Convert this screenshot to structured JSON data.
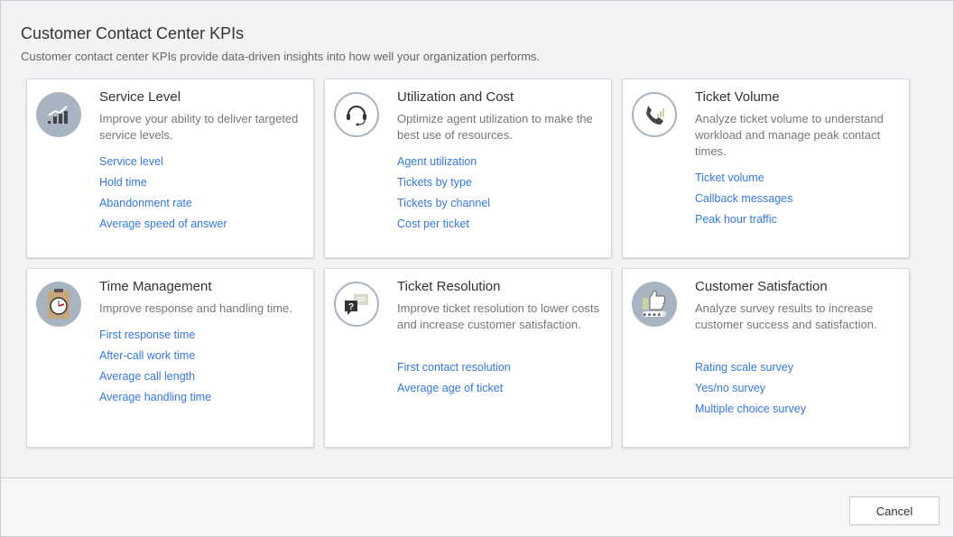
{
  "header": {
    "title": "Customer Contact Center KPIs",
    "subtitle": "Customer contact center KPIs provide data-driven insights into how well your organization performs."
  },
  "cards": [
    {
      "title": "Service Level",
      "icon": "chart-growth-icon",
      "description": "Improve your ability to deliver targeted service levels.",
      "links": [
        "Service level",
        "Hold time",
        "Abandonment rate",
        "Average speed of answer"
      ]
    },
    {
      "title": "Utilization and Cost",
      "icon": "headset-icon",
      "description": "Optimize agent utilization to make the best use of resources.",
      "links": [
        "Agent utilization",
        "Tickets by type",
        "Tickets by channel",
        "Cost per ticket"
      ]
    },
    {
      "title": "Ticket Volume",
      "icon": "phone-icon",
      "description": "Analyze ticket volume to understand workload and manage peak contact times.",
      "links": [
        "Ticket volume",
        "Callback messages",
        "Peak hour traffic"
      ]
    },
    {
      "title": "Time Management",
      "icon": "stopwatch-icon",
      "description": "Improve response and handling time.",
      "links": [
        "First response time",
        "After-call work time",
        "Average call length",
        "Average handling time"
      ]
    },
    {
      "title": "Ticket Resolution",
      "icon": "chat-question-icon",
      "description": "Improve ticket resolution to lower costs and increase customer satisfaction.",
      "links": [
        "First contact resolution",
        "Average age of ticket"
      ]
    },
    {
      "title": "Customer Satisfaction",
      "icon": "thumbs-up-icon",
      "description": "Analyze survey results to increase customer success and satisfaction.",
      "links": [
        "Rating scale survey",
        "Yes/no survey",
        "Multiple choice survey"
      ]
    }
  ],
  "footer": {
    "cancel_label": "Cancel"
  },
  "colors": {
    "link": "#3478e0",
    "icon": "#a9b4c3"
  }
}
